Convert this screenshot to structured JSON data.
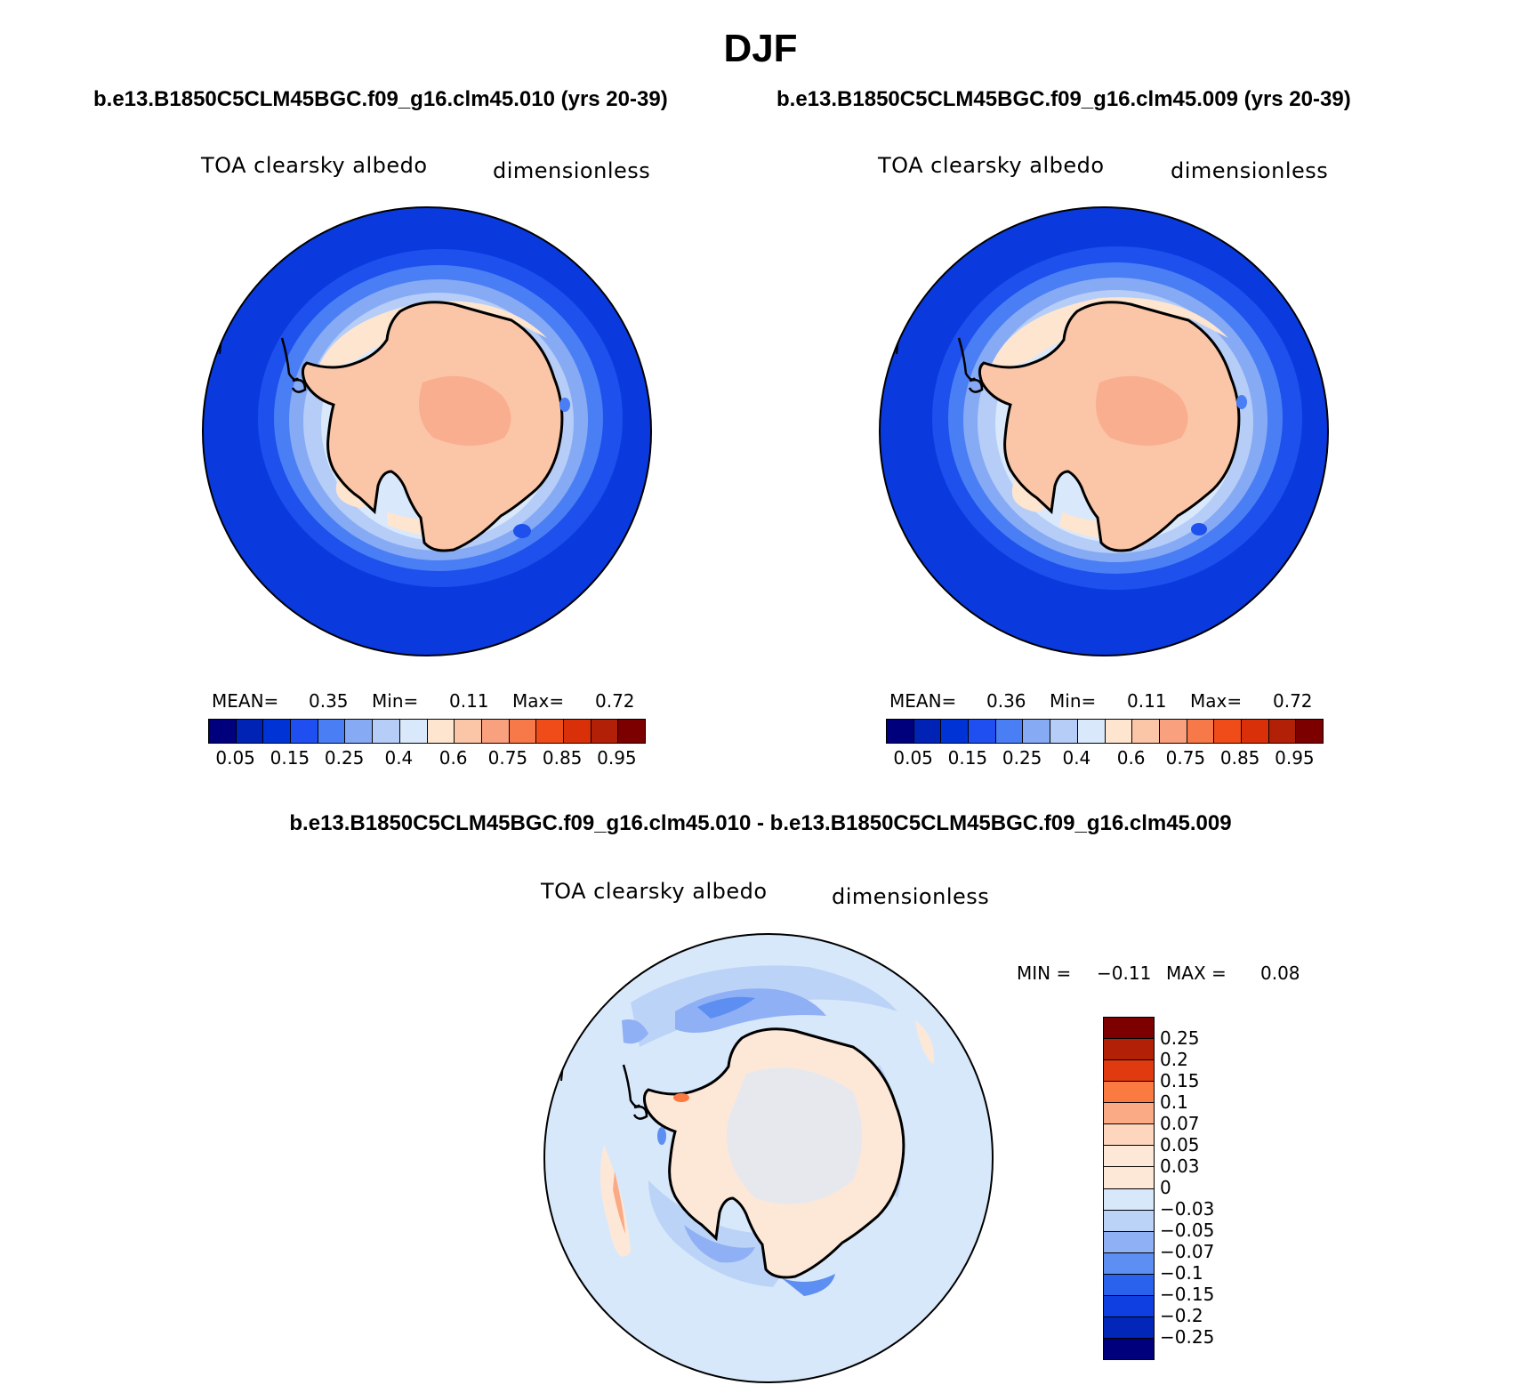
{
  "figure": {
    "season": "DJF",
    "case1_title": "b.e13.B1850C5CLM45BGC.f09_g16.clm45.010 (yrs 20-39)",
    "case2_title": "b.e13.B1850C5CLM45BGC.f09_g16.clm45.009 (yrs 20-39)",
    "diff_title": "b.e13.B1850C5CLM45BGC.f09_g16.clm45.010 - b.e13.B1850C5CLM45BGC.f09_g16.clm45.009"
  },
  "panels": {
    "case1": {
      "variable": "TOA clearsky albedo",
      "units": "dimensionless",
      "mean_label": "MEAN=",
      "mean": "0.35",
      "min_label": "Min=",
      "min": "0.11",
      "max_label": "Max=",
      "max": "0.72"
    },
    "case2": {
      "variable": "TOA clearsky albedo",
      "units": "dimensionless",
      "mean_label": "MEAN=",
      "mean": "0.36",
      "min_label": "Min=",
      "min": "0.11",
      "max_label": "Max=",
      "max": "0.72"
    },
    "diff": {
      "variable": "TOA clearsky albedo",
      "units": "dimensionless",
      "min_label": "MIN =",
      "min": "−0.11",
      "max_label": "MAX =",
      "max": "0.08"
    }
  },
  "colorbars": {
    "main": {
      "colors": [
        "#00007d",
        "#0022b5",
        "#0033d6",
        "#1f4ff0",
        "#4a7ef5",
        "#87aaf5",
        "#b5cdf7",
        "#d9e8fb",
        "#fde5d0",
        "#fbc6a7",
        "#f9a07e",
        "#f77848",
        "#f04c1a",
        "#d9300a",
        "#b32008",
        "#7d0000"
      ],
      "labels": [
        "0.05",
        "0.15",
        "0.25",
        "0.4",
        "0.6",
        "0.75",
        "0.85",
        "0.95"
      ]
    },
    "diff": {
      "colors": [
        "#7d0000",
        "#b32008",
        "#e03a10",
        "#fa7a42",
        "#fbaa86",
        "#fdd6bd",
        "#fde8d8",
        "#d8e8fb",
        "#bcd3f8",
        "#8fb0f5",
        "#5d8ef2",
        "#2a62ee",
        "#0f3fe0",
        "#0226b8",
        "#00007d"
      ],
      "labels": [
        "0.25",
        "0.2",
        "0.15",
        "0.1",
        "0.07",
        "0.05",
        "0.03",
        "0",
        "−0.03",
        "−0.05",
        "−0.07",
        "−0.1",
        "−0.15",
        "−0.2",
        "−0.25"
      ]
    }
  }
}
